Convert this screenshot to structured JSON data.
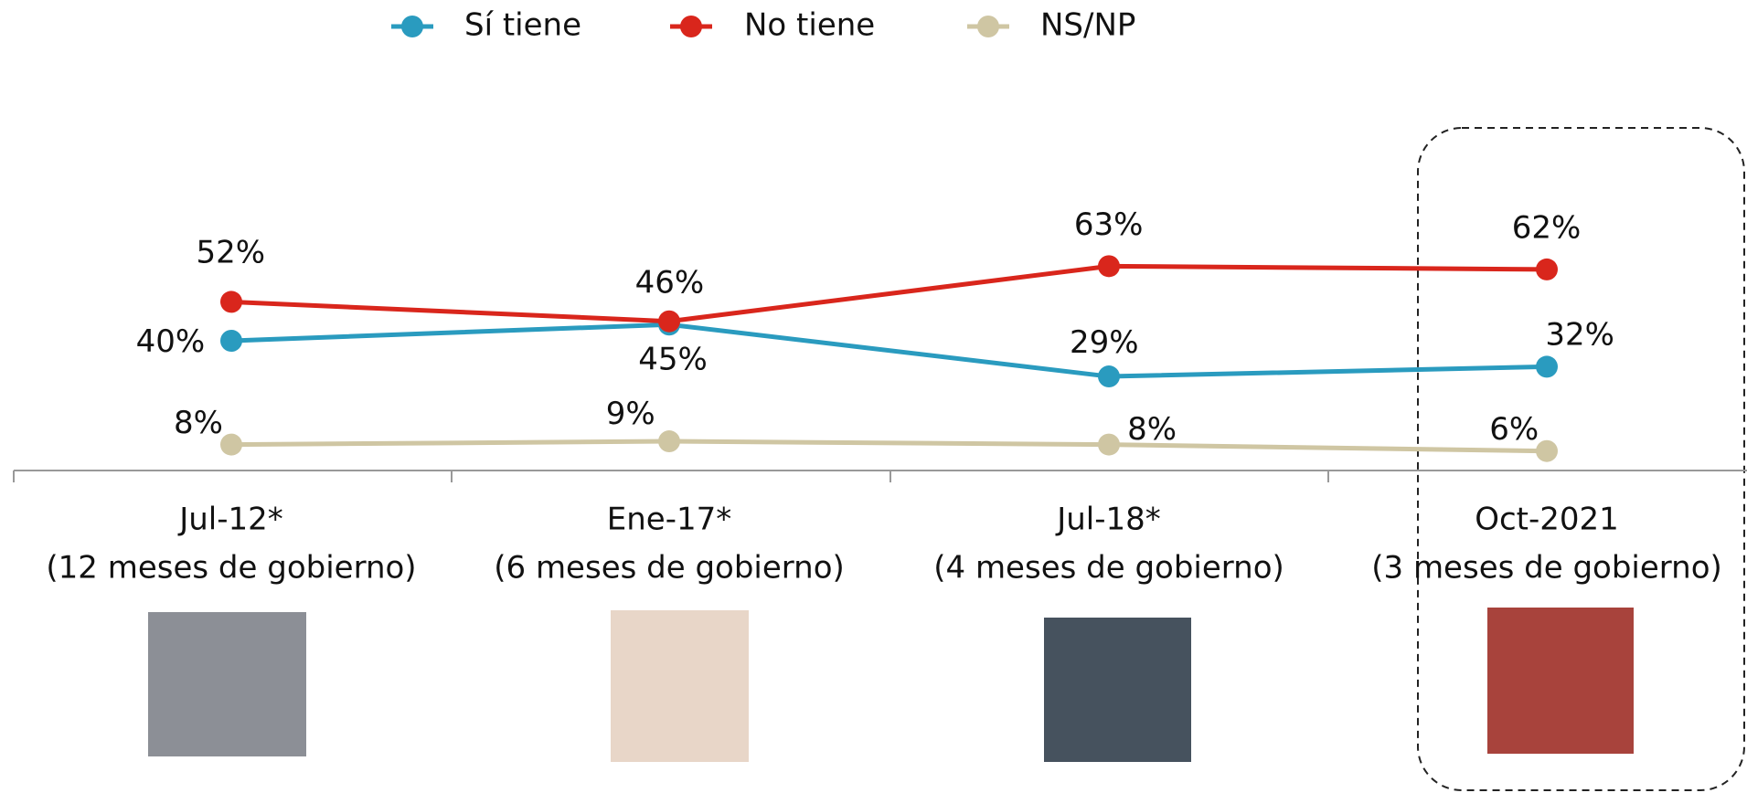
{
  "chart_data": {
    "type": "line",
    "categories": [
      "Jul-12*",
      "Ene-17*",
      "Jul-18*",
      "Oct-2021"
    ],
    "category_notes": [
      "(12 meses de gobierno)",
      "(6 meses de gobierno)",
      "(4 meses de gobierno)",
      "(3 meses de gobierno)"
    ],
    "ylim": [
      0,
      100
    ],
    "legend": "top",
    "series": [
      {
        "name": "Sí tiene",
        "color": "#2a9bbf",
        "values": [
          40,
          45,
          29,
          32
        ],
        "value_labels": [
          "40%",
          "45%",
          "29%",
          "32%"
        ]
      },
      {
        "name": "No tiene",
        "color": "#d9261c",
        "values": [
          52,
          46,
          63,
          62
        ],
        "value_labels": [
          "52%",
          "46%",
          "63%",
          "62%"
        ]
      },
      {
        "name": "NS/NP",
        "color": "#cfc6a3",
        "values": [
          8,
          9,
          8,
          6
        ],
        "value_labels": [
          "8%",
          "9%",
          "8%",
          "6%"
        ]
      }
    ]
  }
}
